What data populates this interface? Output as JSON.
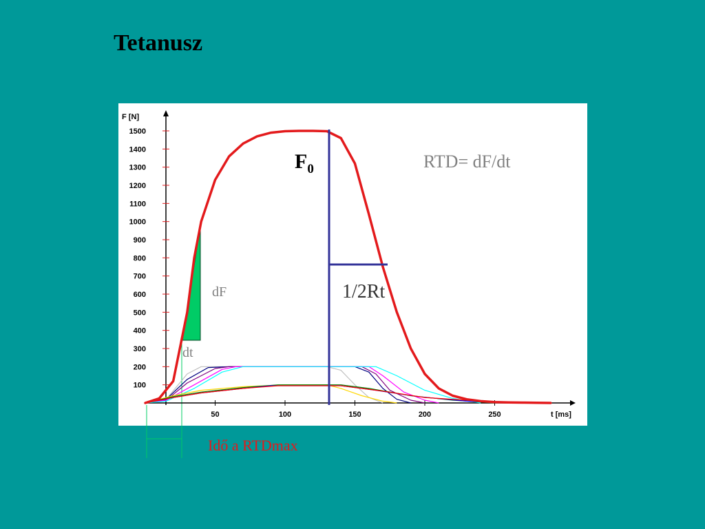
{
  "slide": {
    "title": "Tetanusz"
  },
  "chart_data": {
    "type": "line",
    "ylabel": "F [N]",
    "xlabel": "t  [ms]",
    "xlim": [
      0,
      300
    ],
    "ylim": [
      0,
      1500
    ],
    "x_ticks": [
      50,
      100,
      150,
      200,
      250
    ],
    "y_ticks": [
      100,
      200,
      300,
      400,
      500,
      600,
      700,
      800,
      900,
      1000,
      1100,
      1200,
      1300,
      1400,
      1500
    ],
    "series": [
      {
        "color": "#e31a1c",
        "x": [
          0,
          10,
          20,
          30,
          35,
          40,
          50,
          60,
          70,
          80,
          90,
          100,
          110,
          120,
          130,
          140,
          150,
          160,
          170,
          180,
          190,
          200,
          210,
          220,
          230,
          240,
          250,
          260,
          270,
          280,
          290
        ],
        "y": [
          0,
          25,
          120,
          500,
          800,
          1000,
          1230,
          1360,
          1430,
          1470,
          1490,
          1498,
          1500,
          1500,
          1498,
          1460,
          1320,
          1040,
          750,
          500,
          300,
          160,
          80,
          40,
          20,
          10,
          5,
          3,
          2,
          1,
          0
        ]
      },
      {
        "color": "#c0c0c0",
        "x": [
          0,
          15,
          30,
          40,
          60,
          130,
          140,
          150,
          160,
          170
        ],
        "y": [
          0,
          20,
          160,
          200,
          200,
          200,
          180,
          100,
          30,
          0
        ]
      },
      {
        "color": "#000080",
        "x": [
          0,
          15,
          30,
          45,
          60,
          150,
          160,
          170,
          180,
          190
        ],
        "y": [
          0,
          20,
          130,
          195,
          200,
          200,
          170,
          80,
          20,
          0
        ]
      },
      {
        "color": "#800080",
        "x": [
          0,
          15,
          30,
          50,
          60,
          155,
          165,
          175,
          190,
          200
        ],
        "y": [
          0,
          15,
          110,
          190,
          200,
          200,
          160,
          70,
          15,
          0
        ]
      },
      {
        "color": "#ff00ff",
        "x": [
          0,
          15,
          35,
          55,
          65,
          160,
          170,
          185,
          200,
          210
        ],
        "y": [
          0,
          15,
          100,
          185,
          200,
          200,
          150,
          60,
          15,
          0
        ]
      },
      {
        "color": "#00ffff",
        "x": [
          0,
          15,
          35,
          55,
          70,
          165,
          180,
          200,
          220,
          240
        ],
        "y": [
          0,
          10,
          80,
          170,
          200,
          200,
          150,
          70,
          25,
          0
        ]
      },
      {
        "color": "#ffd700",
        "x": [
          0,
          20,
          40,
          70,
          100,
          130,
          140,
          155,
          170,
          180
        ],
        "y": [
          0,
          40,
          70,
          90,
          100,
          100,
          80,
          40,
          10,
          0
        ]
      },
      {
        "color": "#008000",
        "x": [
          0,
          20,
          40,
          70,
          95,
          140,
          160,
          190,
          220,
          250
        ],
        "y": [
          0,
          35,
          60,
          85,
          100,
          100,
          80,
          40,
          15,
          0
        ]
      },
      {
        "color": "#0000ff",
        "x": [
          0,
          20,
          40,
          70,
          90,
          140,
          165,
          195,
          230,
          260
        ],
        "y": [
          0,
          30,
          55,
          80,
          95,
          95,
          70,
          35,
          10,
          0
        ]
      },
      {
        "color": "#ff0000",
        "x": [
          0,
          20,
          40,
          70,
          95,
          140,
          170,
          200,
          240,
          270
        ],
        "y": [
          0,
          30,
          55,
          80,
          95,
          95,
          65,
          30,
          10,
          0
        ]
      }
    ],
    "annotations": {
      "f0": "F",
      "f0_sub": "0",
      "rtd": "RTD= dF/dt",
      "half_rt": "1/2Rt",
      "df": "dF",
      "dt": "dt",
      "time_to_rtdmax": "Idő a RTDmax"
    },
    "colors": {
      "background": "#009999",
      "plot_bg": "#ffffff",
      "main_curve": "#e31a1c",
      "marker_lines": "#333399",
      "triangle": "#00cc66",
      "annotation_gray": "#808080",
      "time_label": "#e31a1c"
    }
  }
}
